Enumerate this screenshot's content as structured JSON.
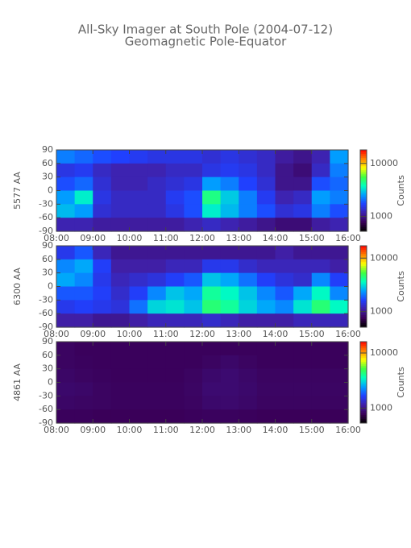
{
  "title": "All-Sky Imager at South Pole (2004-07-12)",
  "subtitle": "Geomagnetic Pole-Equator",
  "chart_data": [
    {
      "type": "heatmap",
      "ylabel": "5577 AA",
      "colorbar_label": "Counts",
      "xlim": [
        8,
        16
      ],
      "xticks": [
        {
          "value": 8,
          "label": "08:00"
        },
        {
          "value": 9,
          "label": "09:00"
        },
        {
          "value": 10,
          "label": "10:00"
        },
        {
          "value": 11,
          "label": "11:00"
        },
        {
          "value": 12,
          "label": "12:00"
        },
        {
          "value": 13,
          "label": "13:00"
        },
        {
          "value": 14,
          "label": "14:00"
        },
        {
          "value": 15,
          "label": "15:00"
        },
        {
          "value": 16,
          "label": "16:00"
        }
      ],
      "ylim": [
        -90,
        90
      ],
      "yticks": [
        -90,
        -60,
        -30,
        0,
        30,
        60,
        90
      ],
      "clim": [
        525,
        18000
      ],
      "cticks": [
        1000,
        10000
      ],
      "log_color": true,
      "colormap": [
        "#000000",
        "#3a0058",
        "#4020a8",
        "#2040ff",
        "#00a0ff",
        "#00ffc0",
        "#40ff40",
        "#ffff00",
        "#ff8000",
        "#ff0000"
      ],
      "z": [
        [
          2200,
          2000,
          1800,
          1700,
          1600,
          1500,
          1500,
          1500,
          1400,
          1500,
          1400,
          1300,
          1100,
          1000,
          1200,
          2500
        ],
        [
          1500,
          1600,
          1300,
          1200,
          1200,
          1200,
          1300,
          1300,
          1500,
          1600,
          1500,
          1300,
          1000,
          900,
          1300,
          2200
        ],
        [
          1800,
          2000,
          1400,
          1200,
          1200,
          1300,
          1400,
          1500,
          2500,
          2200,
          1700,
          1400,
          1000,
          1000,
          1800,
          2000
        ],
        [
          2500,
          3500,
          1500,
          1300,
          1300,
          1300,
          1600,
          1800,
          4500,
          3000,
          2200,
          1600,
          1200,
          1300,
          2500,
          2200
        ],
        [
          2800,
          2500,
          1400,
          1300,
          1300,
          1300,
          1500,
          1800,
          3500,
          2800,
          2200,
          1800,
          1400,
          1500,
          2200,
          1800
        ],
        [
          1200,
          1200,
          1100,
          1100,
          1100,
          1100,
          1100,
          1200,
          1300,
          1200,
          1100,
          1000,
          900,
          900,
          1100,
          1200
        ]
      ]
    },
    {
      "type": "heatmap",
      "ylabel": "6300 AA",
      "colorbar_label": "Counts",
      "xlim": [
        8,
        16
      ],
      "xticks": [
        {
          "value": 8,
          "label": "08:00"
        },
        {
          "value": 9,
          "label": "09:00"
        },
        {
          "value": 10,
          "label": "10:00"
        },
        {
          "value": 11,
          "label": "11:00"
        },
        {
          "value": 12,
          "label": "12:00"
        },
        {
          "value": 13,
          "label": "13:00"
        },
        {
          "value": 14,
          "label": "14:00"
        },
        {
          "value": 15,
          "label": "15:00"
        },
        {
          "value": 16,
          "label": "16:00"
        }
      ],
      "ylim": [
        -90,
        90
      ],
      "yticks": [
        -90,
        -60,
        -30,
        0,
        30,
        60,
        90
      ],
      "clim": [
        510,
        17000
      ],
      "cticks": [
        1000,
        10000
      ],
      "log_color": true,
      "colormap": [
        "#000000",
        "#3a0058",
        "#4020a8",
        "#2040ff",
        "#00a0ff",
        "#00ffc0",
        "#40ff40",
        "#ffff00",
        "#ff8000",
        "#ff0000"
      ],
      "z": [
        [
          1500,
          1800,
          1200,
          1000,
          1000,
          1000,
          1000,
          1000,
          1000,
          1000,
          1000,
          1000,
          1100,
          1000,
          1000,
          1000
        ],
        [
          2200,
          2500,
          1600,
          1100,
          1100,
          1100,
          1200,
          1200,
          1500,
          1500,
          1300,
          1200,
          1200,
          1200,
          1200,
          1100
        ],
        [
          2500,
          2200,
          1500,
          1200,
          1300,
          1400,
          1600,
          1800,
          2800,
          2500,
          2000,
          1600,
          1400,
          1300,
          2200,
          1600
        ],
        [
          1800,
          1800,
          1600,
          1300,
          1600,
          2200,
          2800,
          2500,
          4000,
          3500,
          2800,
          2200,
          1800,
          2500,
          3500,
          2200
        ],
        [
          1500,
          1600,
          1500,
          1400,
          2000,
          3000,
          3200,
          2800,
          4500,
          4000,
          3000,
          2500,
          2200,
          3200,
          4500,
          3500
        ],
        [
          1100,
          1100,
          1000,
          1000,
          1100,
          1200,
          1200,
          1200,
          1300,
          1200,
          1100,
          1100,
          1100,
          1200,
          1200,
          1200
        ]
      ]
    },
    {
      "type": "heatmap",
      "ylabel": "4861 AA",
      "colorbar_label": "Counts",
      "xlim": [
        8,
        16
      ],
      "xticks": [
        {
          "value": 8,
          "label": "08:00"
        },
        {
          "value": 9,
          "label": "09:00"
        },
        {
          "value": 10,
          "label": "10:00"
        },
        {
          "value": 11,
          "label": "11:00"
        },
        {
          "value": 12,
          "label": "12:00"
        },
        {
          "value": 13,
          "label": "13:00"
        },
        {
          "value": 14,
          "label": "14:00"
        },
        {
          "value": 15,
          "label": "15:00"
        },
        {
          "value": 16,
          "label": "16:00"
        }
      ],
      "ylim": [
        -90,
        90
      ],
      "yticks": [
        -90,
        -60,
        -30,
        0,
        30,
        60,
        90
      ],
      "clim": [
        540,
        16000
      ],
      "cticks": [
        1000,
        10000
      ],
      "log_color": true,
      "colormap": [
        "#000000",
        "#3a0058",
        "#4020a8",
        "#2040ff",
        "#00a0ff",
        "#00ffc0",
        "#40ff40",
        "#ffff00",
        "#ff8000",
        "#ff0000"
      ],
      "z": [
        [
          820,
          800,
          800,
          800,
          800,
          800,
          800,
          800,
          800,
          800,
          800,
          800,
          800,
          800,
          800,
          800
        ],
        [
          820,
          810,
          800,
          800,
          800,
          800,
          800,
          800,
          820,
          850,
          820,
          800,
          800,
          800,
          800,
          800
        ],
        [
          840,
          820,
          810,
          800,
          800,
          800,
          800,
          820,
          860,
          880,
          850,
          820,
          820,
          820,
          820,
          820
        ],
        [
          860,
          850,
          820,
          810,
          810,
          810,
          810,
          830,
          880,
          880,
          860,
          830,
          830,
          830,
          830,
          830
        ],
        [
          840,
          830,
          820,
          810,
          810,
          810,
          810,
          820,
          860,
          870,
          850,
          820,
          820,
          820,
          820,
          820
        ],
        [
          800,
          800,
          790,
          790,
          790,
          790,
          790,
          800,
          810,
          810,
          800,
          790,
          790,
          790,
          790,
          790
        ]
      ]
    }
  ]
}
